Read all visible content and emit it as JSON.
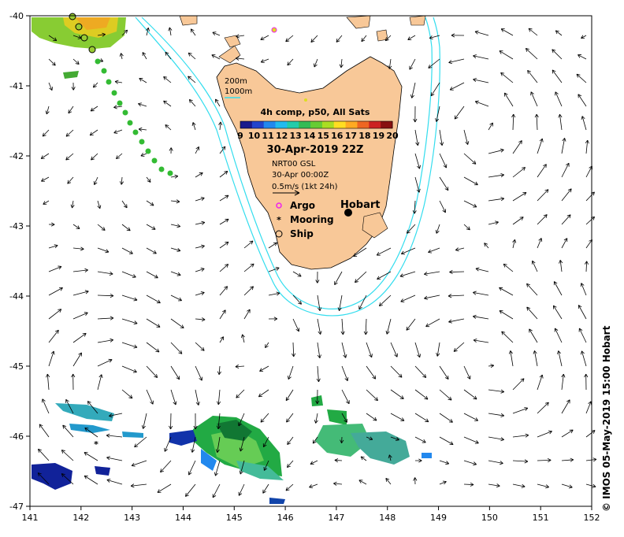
{
  "map": {
    "x_ticks": [
      "141",
      "142",
      "143",
      "144",
      "145",
      "146",
      "147",
      "148",
      "149",
      "150",
      "151",
      "152"
    ],
    "y_ticks": [
      "-40",
      "-41",
      "-42",
      "-43",
      "-44",
      "-45",
      "-46",
      "-47"
    ],
    "lon_range": [
      141,
      152
    ],
    "lat_range": [
      -47,
      -40
    ]
  },
  "legend": {
    "depth_200": "200m",
    "depth_1000": "1000m",
    "title": "4h comp, p50, All Sats",
    "colorbar_ticks": [
      "9",
      "10",
      "11",
      "12",
      "13",
      "14",
      "15",
      "16",
      "17",
      "18",
      "19",
      "20"
    ],
    "date": "30-Apr-2019 22Z",
    "nrt": "NRT00 GSL",
    "nrt_date": "30-Apr 00:00Z",
    "velocity_scale": "0.5m/s (1kt 24h)",
    "argo": "Argo",
    "mooring": "Mooring",
    "ship": "Ship"
  },
  "places": {
    "hobart": "Hobart"
  },
  "credit": "© IMOS 05-May-2019 15:00 Hobart",
  "colors": {
    "land": "#f8c898",
    "shelf_contour": "#33ddee",
    "argo": "#ee22ee"
  }
}
